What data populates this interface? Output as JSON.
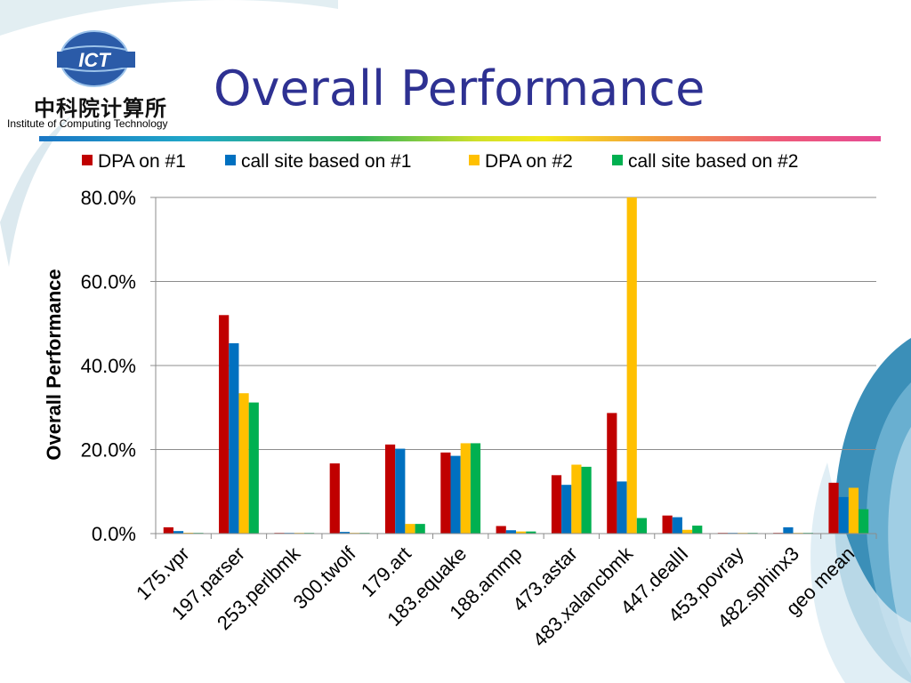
{
  "slide": {
    "title": "Overall Performance",
    "logo_text": "ICT",
    "logo_chinese": "中科院计算所",
    "logo_subtitle": "Institute of Computing Technology"
  },
  "chart_data": {
    "type": "bar",
    "title": "",
    "xlabel": "",
    "ylabel": "Overall Performance",
    "ylim": [
      0,
      80
    ],
    "yticks": [
      "0.0%",
      "20.0%",
      "40.0%",
      "60.0%",
      "80.0%"
    ],
    "grid": true,
    "legend": "top",
    "categories": [
      "175.vpr",
      "197.parser",
      "253.perlbmk",
      "300.twolf",
      "179.art",
      "183.equake",
      "188.ammp",
      "473.astar",
      "483.xalancbmk",
      "447.dealII",
      "453.povray",
      "482.sphinx3",
      "geo mean"
    ],
    "series": [
      {
        "name": "DPA on #1",
        "color": "#c00000",
        "values": [
          1.5,
          52.0,
          0.1,
          16.7,
          21.2,
          19.3,
          1.8,
          13.9,
          28.7,
          4.3,
          0.1,
          0.1,
          12.1
        ]
      },
      {
        "name": "call site based on #1",
        "color": "#0070c0",
        "values": [
          0.6,
          45.3,
          0.1,
          0.4,
          20.2,
          18.5,
          0.8,
          11.6,
          12.4,
          3.9,
          0.1,
          1.5,
          8.7
        ]
      },
      {
        "name": "DPA on #2",
        "color": "#ffc000",
        "values": [
          0.2,
          33.4,
          0.0,
          0.1,
          2.3,
          21.5,
          0.5,
          16.4,
          80.0,
          0.9,
          0.1,
          0.1,
          10.9
        ]
      },
      {
        "name": "call site based on #2",
        "color": "#00b050",
        "values": [
          0.1,
          31.2,
          0.0,
          0.1,
          2.3,
          21.5,
          0.5,
          15.9,
          3.7,
          1.9,
          0.1,
          0.1,
          5.8
        ]
      }
    ]
  }
}
